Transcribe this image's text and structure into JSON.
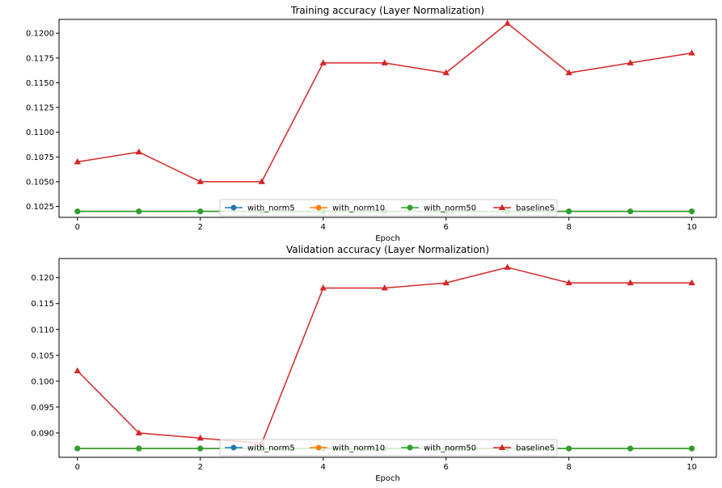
{
  "chart_data": [
    {
      "type": "line",
      "title": "Training accuracy (Layer Normalization)",
      "xlabel": "Epoch",
      "ylabel": "",
      "x": [
        0,
        1,
        2,
        3,
        4,
        5,
        6,
        7,
        8,
        9,
        10
      ],
      "xlim": [
        -0.3,
        10.4
      ],
      "ylim": [
        1.0144,
        0.1214
      ],
      "xticks": [
        0,
        2,
        4,
        6,
        8,
        10
      ],
      "yticks": [
        0.1025,
        0.105,
        0.1075,
        0.11,
        0.1125,
        0.115,
        0.1175,
        0.12
      ],
      "ytick_labels": [
        "0.1025",
        "0.1050",
        "0.1075",
        "0.1100",
        "0.1125",
        "0.1150",
        "0.1175",
        "0.1200"
      ],
      "grid": false,
      "legend": "lower-center",
      "series": [
        {
          "name": "with_norm5",
          "color": "#1f77b4",
          "marker": "circle",
          "values": [
            0.102,
            0.102,
            0.102,
            0.102,
            0.102,
            0.102,
            0.102,
            0.102,
            0.102,
            0.102,
            0.102
          ]
        },
        {
          "name": "with_norm10",
          "color": "#ff7f0e",
          "marker": "circle",
          "values": [
            0.102,
            0.102,
            0.102,
            0.102,
            0.102,
            0.102,
            0.102,
            0.102,
            0.102,
            0.102,
            0.102
          ]
        },
        {
          "name": "with_norm50",
          "color": "#2ca02c",
          "marker": "circle",
          "values": [
            0.102,
            0.102,
            0.102,
            0.102,
            0.102,
            0.102,
            0.102,
            0.102,
            0.102,
            0.102,
            0.102
          ]
        },
        {
          "name": "baseline5",
          "color": "#d62728",
          "marker": "triangle",
          "values": [
            0.107,
            0.108,
            0.105,
            0.105,
            0.117,
            0.117,
            0.116,
            0.121,
            0.116,
            0.117,
            0.118
          ]
        }
      ]
    },
    {
      "type": "line",
      "title": "Validation accuracy (Layer Normalization)",
      "xlabel": "Epoch",
      "ylabel": "",
      "x": [
        0,
        1,
        2,
        3,
        4,
        5,
        6,
        7,
        8,
        9,
        10
      ],
      "xlim": [
        -0.3,
        10.4
      ],
      "ylim": [
        0.0853,
        0.1237
      ],
      "xticks": [
        0,
        2,
        4,
        6,
        8,
        10
      ],
      "yticks": [
        0.09,
        0.095,
        0.1,
        0.105,
        0.11,
        0.115,
        0.12
      ],
      "ytick_labels": [
        "0.090",
        "0.095",
        "0.100",
        "0.105",
        "0.110",
        "0.115",
        "0.120"
      ],
      "grid": false,
      "legend": "lower-center",
      "series": [
        {
          "name": "with_norm5",
          "color": "#1f77b4",
          "marker": "circle",
          "values": [
            0.087,
            0.087,
            0.087,
            0.087,
            0.087,
            0.087,
            0.087,
            0.087,
            0.087,
            0.087,
            0.087
          ]
        },
        {
          "name": "with_norm10",
          "color": "#ff7f0e",
          "marker": "circle",
          "values": [
            0.087,
            0.087,
            0.087,
            0.087,
            0.087,
            0.087,
            0.087,
            0.087,
            0.087,
            0.087,
            0.087
          ]
        },
        {
          "name": "with_norm50",
          "color": "#2ca02c",
          "marker": "circle",
          "values": [
            0.087,
            0.087,
            0.087,
            0.087,
            0.087,
            0.087,
            0.087,
            0.087,
            0.087,
            0.087,
            0.087
          ]
        },
        {
          "name": "baseline5",
          "color": "#d62728",
          "marker": "triangle",
          "values": [
            0.102,
            0.09,
            0.089,
            0.088,
            0.118,
            0.118,
            0.119,
            0.122,
            0.119,
            0.119,
            0.119
          ]
        }
      ]
    }
  ]
}
